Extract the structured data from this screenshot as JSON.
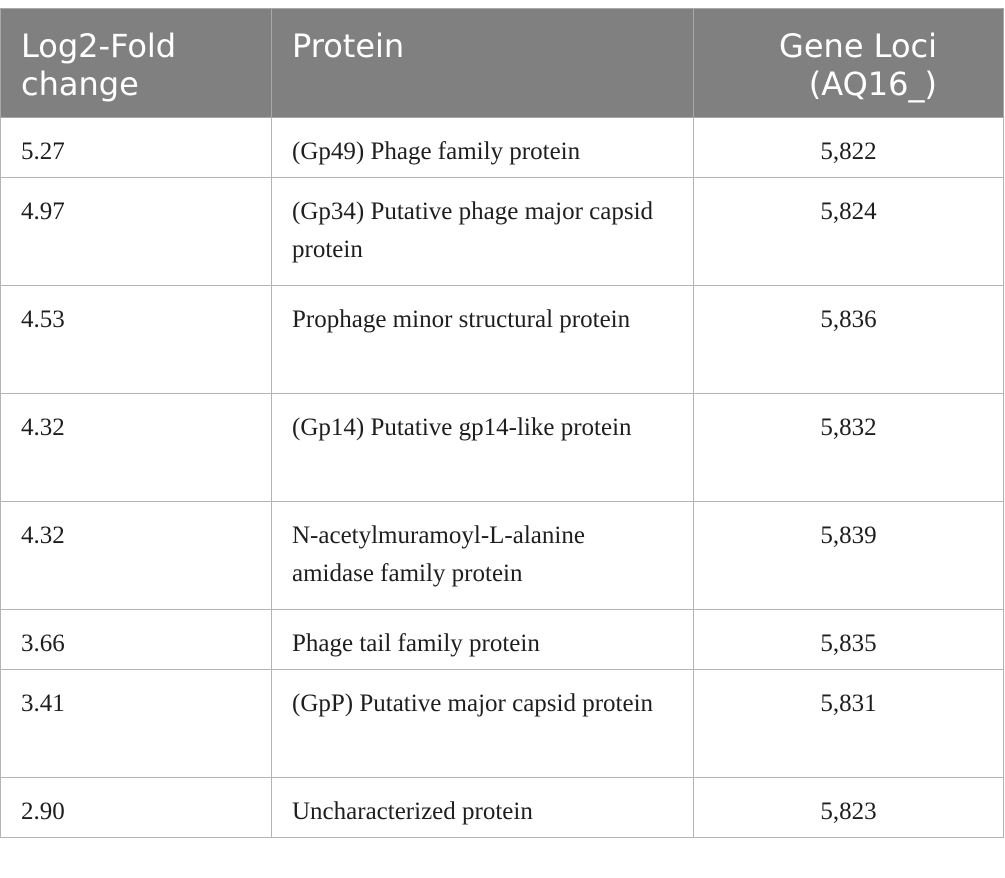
{
  "table": {
    "headers": {
      "fold_change": "Log2-Fold change",
      "protein": "Protein",
      "gene_loci": "Gene Loci (AQ16_)"
    },
    "rows": [
      {
        "fold_change": "5.27",
        "protein": "(Gp49) Phage family protein",
        "gene_loci": "5,822"
      },
      {
        "fold_change": "4.97",
        "protein": "(Gp34) Putative phage major capsid protein",
        "gene_loci": "5,824"
      },
      {
        "fold_change": "4.53",
        "protein": "Prophage minor structural protein",
        "gene_loci": "5,836"
      },
      {
        "fold_change": "4.32",
        "protein": "(Gp14) Putative gp14-like protein",
        "gene_loci": "5,832"
      },
      {
        "fold_change": "4.32",
        "protein": "N-acetylmuramoyl-L-alanine amidase family protein",
        "gene_loci": "5,839"
      },
      {
        "fold_change": "3.66",
        "protein": "Phage tail family protein",
        "gene_loci": "5,835"
      },
      {
        "fold_change": "3.41",
        "protein": "(GpP) Putative major capsid protein",
        "gene_loci": "5,831"
      },
      {
        "fold_change": "2.90",
        "protein": "Uncharacterized protein",
        "gene_loci": "5,823"
      }
    ]
  },
  "colors": {
    "header_bg": "#808080",
    "header_text": "#ffffff",
    "border": "#b4b4b4",
    "body_text": "#1e1e1e"
  }
}
